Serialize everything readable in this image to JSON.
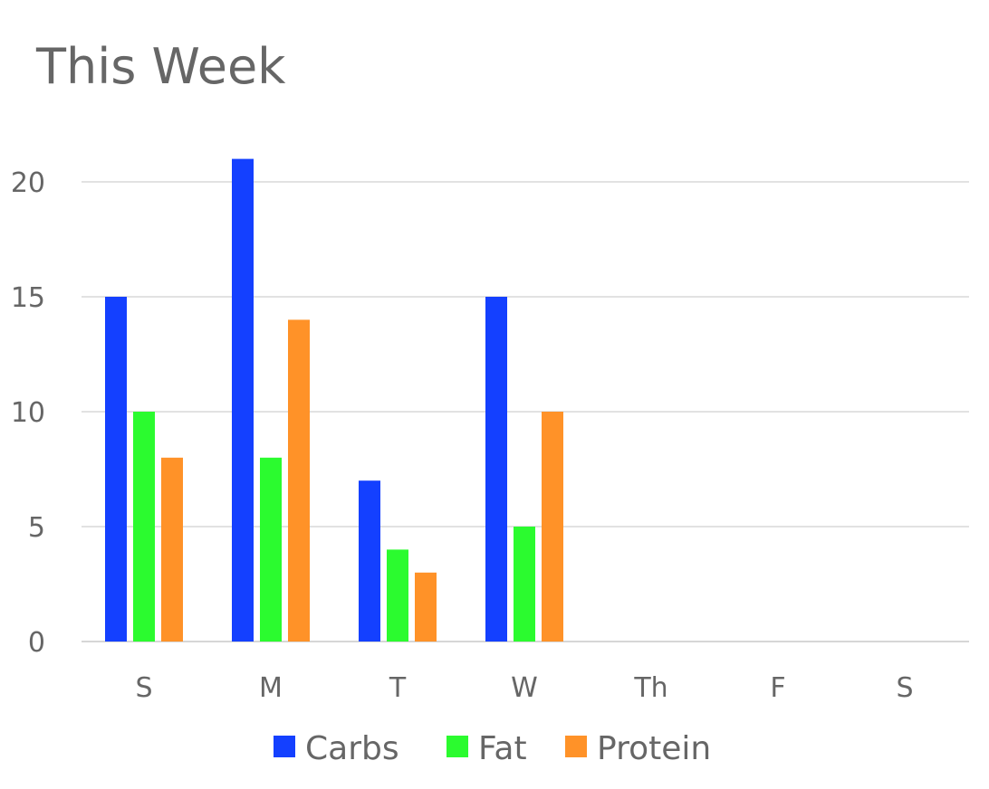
{
  "chart_data": {
    "type": "bar",
    "title": "This Week",
    "categories": [
      "S",
      "M",
      "T",
      "W",
      "Th",
      "F",
      "S"
    ],
    "series": [
      {
        "name": "Carbs",
        "color": "#1440ff",
        "values": [
          15,
          21,
          7,
          15,
          null,
          null,
          null
        ]
      },
      {
        "name": "Fat",
        "color": "#2bfb2f",
        "values": [
          10,
          8,
          4,
          5,
          null,
          null,
          null
        ]
      },
      {
        "name": "Protein",
        "color": "#ff9228",
        "values": [
          8,
          14,
          3,
          10,
          null,
          null,
          null
        ]
      }
    ],
    "ylim": [
      0,
      20
    ],
    "yticks": [
      0,
      5,
      10,
      15,
      20
    ],
    "grid": true,
    "legend_position": "bottom"
  }
}
